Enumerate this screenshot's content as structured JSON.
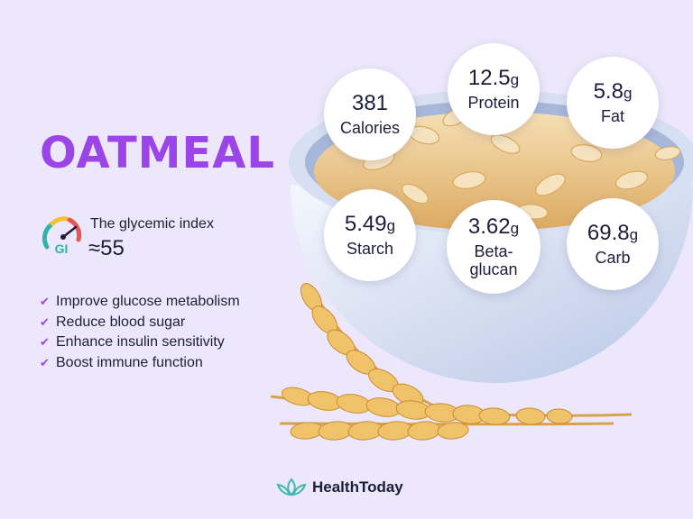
{
  "title": "OATMEAL",
  "glycemic": {
    "label": "The glycemic index",
    "value": "≈55",
    "gauge_text": "GI"
  },
  "benefits": [
    "Improve glucose metabolism",
    "Reduce blood sugar",
    "Enhance insulin sensitivity",
    "Boost immune function"
  ],
  "nutrients": {
    "calories": {
      "value": "381",
      "unit": "",
      "label": "Calories"
    },
    "protein": {
      "value": "12.5",
      "unit": "g",
      "label": "Protein"
    },
    "fat": {
      "value": "5.8",
      "unit": "g",
      "label": "Fat"
    },
    "starch": {
      "value": "5.49",
      "unit": "g",
      "label": "Starch"
    },
    "betaglucan": {
      "value": "3.62",
      "unit": "g",
      "label": "Beta-\nglucan"
    },
    "carb": {
      "value": "69.8",
      "unit": "g",
      "label": "Carb"
    }
  },
  "brand": {
    "name": "HealthToday",
    "accent": "#3fb8b0"
  },
  "colors": {
    "background": "#ece7fb",
    "accent": "#9b45e8",
    "text": "#1d1e3a"
  },
  "icons": {
    "check": "check-icon",
    "gauge": "gauge-icon",
    "logo": "lotus-logo-icon"
  }
}
